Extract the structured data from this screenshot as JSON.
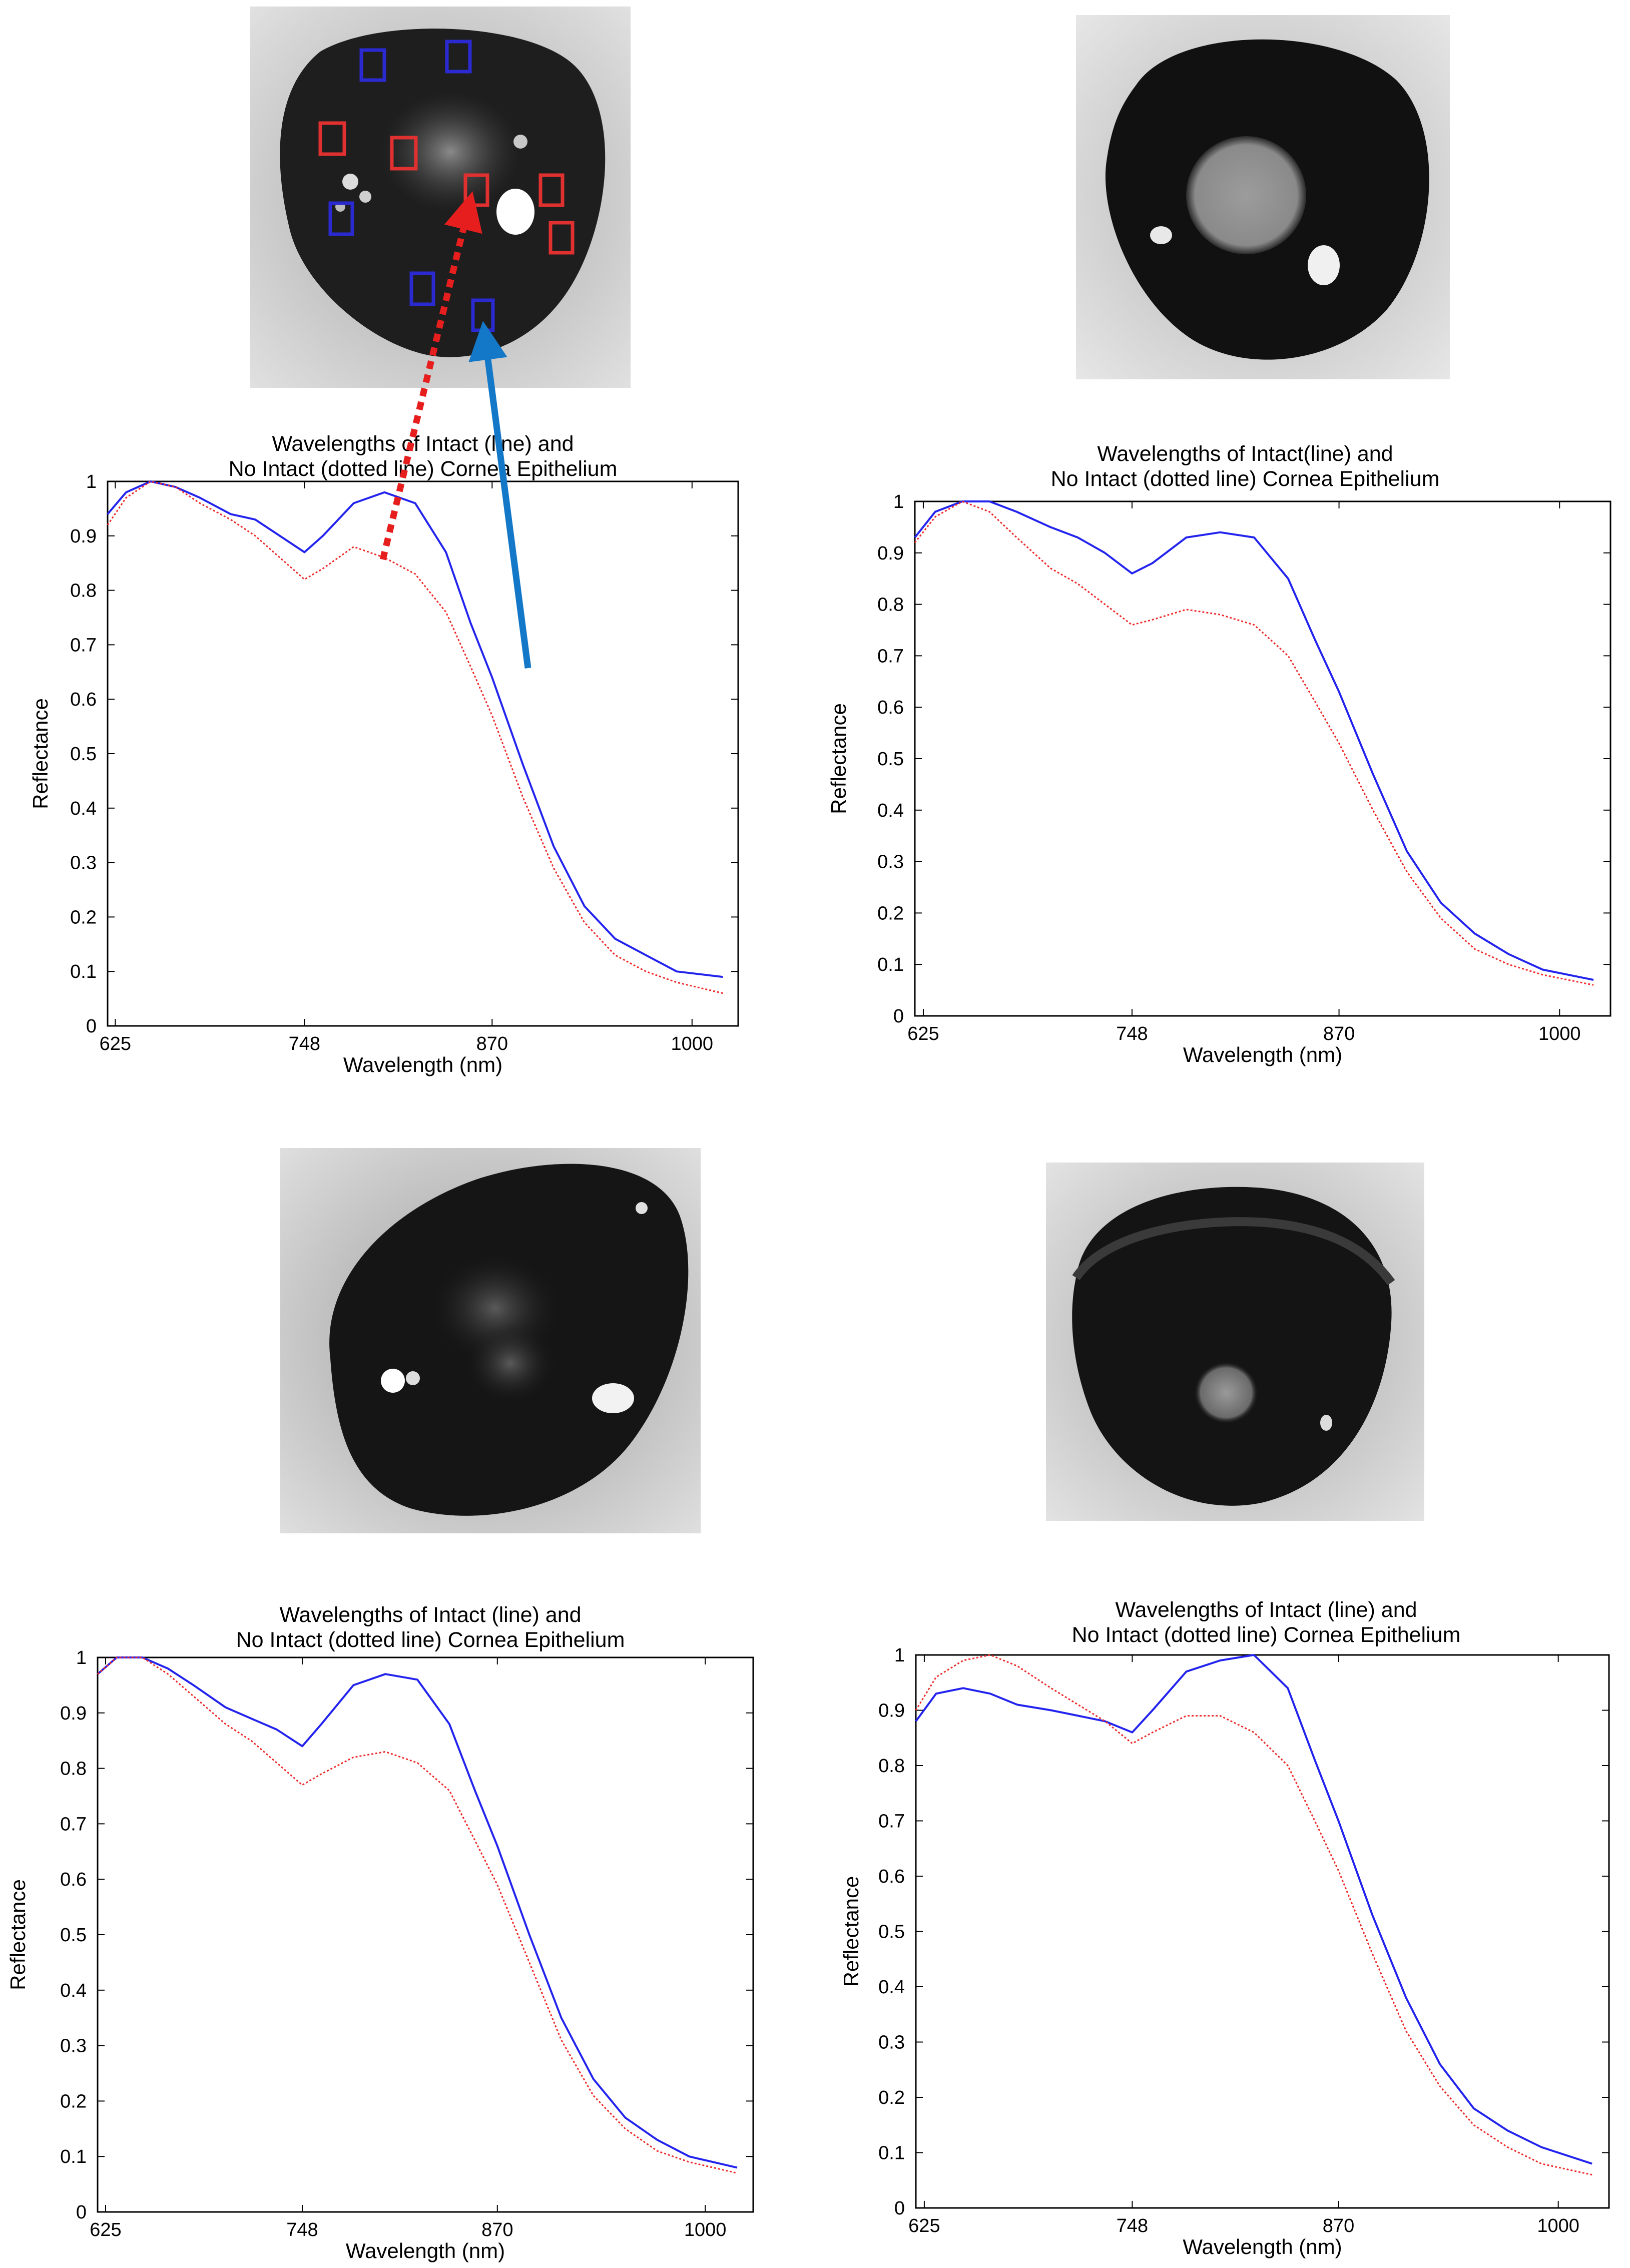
{
  "photos": [
    {
      "label": "Cornea image with regions of interest (red: non-intact, blue: intact)"
    },
    {
      "label": "Cornea image 2"
    },
    {
      "label": "Cornea image 3"
    },
    {
      "label": "Cornea image 4"
    }
  ],
  "colors": {
    "intact": "#2323ee",
    "no_intact": "#ee2a2a",
    "arrow_blue": "#1478c8",
    "arrow_red": "#e61e1e"
  },
  "chart_data": [
    {
      "type": "line",
      "title_line1": "Wavelengths of Intact (line) and",
      "title_line2": "No Intact (dotted line) Cornea Epithelium",
      "xlabel": "Wavelength (nm)",
      "ylabel": "Reflectance",
      "xlim": [
        620,
        1030
      ],
      "ylim": [
        0,
        1.0
      ],
      "xticks": [
        625,
        748,
        870,
        1000
      ],
      "yticks": [
        0,
        0.1,
        0.2,
        0.3,
        0.4,
        0.5,
        0.6,
        0.7,
        0.8,
        0.9,
        1
      ],
      "series": [
        {
          "name": "Intact (line)",
          "style": "solid",
          "x": [
            620,
            632,
            648,
            664,
            680,
            700,
            716,
            732,
            748,
            760,
            780,
            800,
            820,
            840,
            856,
            870,
            890,
            910,
            930,
            950,
            970,
            990,
            1020
          ],
          "y": [
            0.94,
            0.98,
            1.0,
            0.99,
            0.97,
            0.94,
            0.93,
            0.9,
            0.87,
            0.9,
            0.96,
            0.98,
            0.96,
            0.87,
            0.74,
            0.64,
            0.48,
            0.33,
            0.22,
            0.16,
            0.13,
            0.1,
            0.09
          ]
        },
        {
          "name": "No Intact (dotted line)",
          "style": "dotted",
          "x": [
            620,
            632,
            648,
            664,
            680,
            700,
            716,
            732,
            748,
            760,
            780,
            800,
            820,
            840,
            856,
            870,
            890,
            910,
            930,
            950,
            970,
            990,
            1020
          ],
          "y": [
            0.92,
            0.97,
            1.0,
            0.99,
            0.96,
            0.93,
            0.9,
            0.86,
            0.82,
            0.84,
            0.88,
            0.86,
            0.83,
            0.76,
            0.66,
            0.57,
            0.42,
            0.29,
            0.19,
            0.13,
            0.1,
            0.08,
            0.06
          ]
        }
      ]
    },
    {
      "type": "line",
      "title_line1": "Wavelengths of Intact(line) and",
      "title_line2": "No Intact (dotted line) Cornea Epithelium",
      "xlabel": "Wavelength (nm)",
      "ylabel": "Reflectance",
      "xlim": [
        620,
        1030
      ],
      "ylim": [
        0,
        1.0
      ],
      "xticks": [
        625,
        748,
        870,
        1000
      ],
      "yticks": [
        0,
        0.1,
        0.2,
        0.3,
        0.4,
        0.5,
        0.6,
        0.7,
        0.8,
        0.9,
        1
      ],
      "series": [
        {
          "name": "Intact (line)",
          "style": "solid",
          "x": [
            620,
            632,
            648,
            664,
            680,
            700,
            716,
            732,
            748,
            760,
            780,
            800,
            820,
            840,
            856,
            870,
            890,
            910,
            930,
            950,
            970,
            990,
            1020
          ],
          "y": [
            0.93,
            0.98,
            1.0,
            1.0,
            0.98,
            0.95,
            0.93,
            0.9,
            0.86,
            0.88,
            0.93,
            0.94,
            0.93,
            0.85,
            0.73,
            0.63,
            0.47,
            0.32,
            0.22,
            0.16,
            0.12,
            0.09,
            0.07
          ]
        },
        {
          "name": "No Intact (dotted line)",
          "style": "dotted",
          "x": [
            620,
            632,
            648,
            664,
            680,
            700,
            716,
            732,
            748,
            760,
            780,
            800,
            820,
            840,
            856,
            870,
            890,
            910,
            930,
            950,
            970,
            990,
            1020
          ],
          "y": [
            0.92,
            0.97,
            1.0,
            0.98,
            0.93,
            0.87,
            0.84,
            0.8,
            0.76,
            0.77,
            0.79,
            0.78,
            0.76,
            0.7,
            0.61,
            0.53,
            0.4,
            0.28,
            0.19,
            0.13,
            0.1,
            0.08,
            0.06
          ]
        }
      ]
    },
    {
      "type": "line",
      "title_line1": "Wavelengths of Intact (line) and",
      "title_line2": "No Intact (dotted line) Cornea Epithelium",
      "xlabel": "Wavelength (nm)",
      "ylabel": "Reflectance",
      "xlim": [
        620,
        1030
      ],
      "ylim": [
        0,
        1.0
      ],
      "xticks": [
        625,
        748,
        870,
        1000
      ],
      "yticks": [
        0,
        0.1,
        0.2,
        0.3,
        0.4,
        0.5,
        0.6,
        0.7,
        0.8,
        0.9,
        1
      ],
      "series": [
        {
          "name": "Intact (line)",
          "style": "solid",
          "x": [
            620,
            632,
            648,
            664,
            680,
            700,
            716,
            732,
            748,
            760,
            780,
            800,
            820,
            840,
            856,
            870,
            890,
            910,
            930,
            950,
            970,
            990,
            1020
          ],
          "y": [
            0.97,
            1.0,
            1.0,
            0.98,
            0.95,
            0.91,
            0.89,
            0.87,
            0.84,
            0.88,
            0.95,
            0.97,
            0.96,
            0.88,
            0.76,
            0.66,
            0.5,
            0.35,
            0.24,
            0.17,
            0.13,
            0.1,
            0.08
          ]
        },
        {
          "name": "No Intact (dotted line)",
          "style": "dotted",
          "x": [
            620,
            632,
            648,
            664,
            680,
            700,
            716,
            732,
            748,
            760,
            780,
            800,
            820,
            840,
            856,
            870,
            890,
            910,
            930,
            950,
            970,
            990,
            1020
          ],
          "y": [
            0.97,
            1.0,
            1.0,
            0.97,
            0.93,
            0.88,
            0.85,
            0.81,
            0.77,
            0.79,
            0.82,
            0.83,
            0.81,
            0.76,
            0.67,
            0.59,
            0.45,
            0.31,
            0.21,
            0.15,
            0.11,
            0.09,
            0.07
          ]
        }
      ]
    },
    {
      "type": "line",
      "title_line1": "Wavelengths of Intact (line) and",
      "title_line2": "No Intact (dotted line) Cornea Epithelium",
      "xlabel": "Wavelength (nm)",
      "ylabel": "Reflectance",
      "xlim": [
        620,
        1030
      ],
      "ylim": [
        0,
        1.0
      ],
      "xticks": [
        625,
        748,
        870,
        1000
      ],
      "yticks": [
        0,
        0.1,
        0.2,
        0.3,
        0.4,
        0.5,
        0.6,
        0.7,
        0.8,
        0.9,
        1
      ],
      "series": [
        {
          "name": "Intact (line)",
          "style": "solid",
          "x": [
            620,
            632,
            648,
            664,
            680,
            700,
            716,
            732,
            748,
            760,
            780,
            800,
            820,
            840,
            856,
            870,
            890,
            910,
            930,
            950,
            970,
            990,
            1020
          ],
          "y": [
            0.88,
            0.93,
            0.94,
            0.93,
            0.91,
            0.9,
            0.89,
            0.88,
            0.86,
            0.9,
            0.97,
            0.99,
            1.0,
            0.94,
            0.81,
            0.7,
            0.53,
            0.38,
            0.26,
            0.18,
            0.14,
            0.11,
            0.08
          ]
        },
        {
          "name": "No Intact (dotted line)",
          "style": "dotted",
          "x": [
            620,
            632,
            648,
            664,
            680,
            700,
            716,
            732,
            748,
            760,
            780,
            800,
            820,
            840,
            856,
            870,
            890,
            910,
            930,
            950,
            970,
            990,
            1020
          ],
          "y": [
            0.9,
            0.96,
            0.99,
            1.0,
            0.98,
            0.94,
            0.91,
            0.88,
            0.84,
            0.86,
            0.89,
            0.89,
            0.86,
            0.8,
            0.7,
            0.61,
            0.46,
            0.32,
            0.22,
            0.15,
            0.11,
            0.08,
            0.06
          ]
        }
      ]
    }
  ]
}
